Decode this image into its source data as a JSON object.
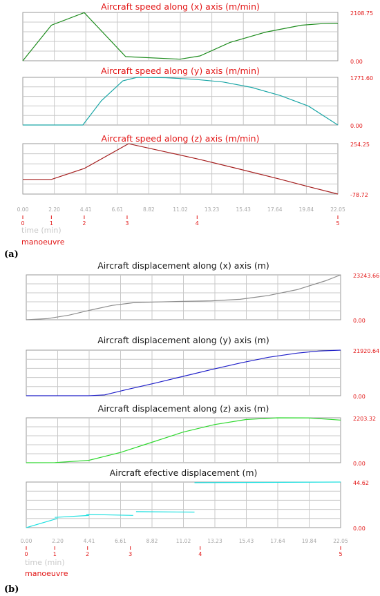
{
  "chart_data": [
    {
      "type": "line",
      "title": "Aircraft speed along (x) axis  (m/min)",
      "title_color": "#e21616",
      "color": "#1e8c1e",
      "max_label": "2108.75",
      "min_label": "0.00",
      "ylim": [
        0,
        2108.75
      ],
      "x": [
        0,
        2.0,
        4.3,
        7.2,
        11.0,
        12.4,
        14.5,
        17.0,
        19.5,
        21.0,
        22.05
      ],
      "y": [
        0,
        1550,
        2100,
        180,
        70,
        210,
        800,
        1250,
        1550,
        1620,
        1640
      ]
    },
    {
      "type": "line",
      "title": "Aircraft speed along (y) axis  (m/min)",
      "title_color": "#e21616",
      "color": "#1aa6a6",
      "max_label": "1771.60",
      "min_label": "0.00",
      "ylim": [
        0,
        1771.6
      ],
      "x": [
        0,
        4.2,
        5.5,
        7.0,
        8.0,
        10.0,
        12.0,
        14.0,
        16.0,
        18.0,
        20.0,
        22.05
      ],
      "y": [
        0,
        0,
        900,
        1640,
        1771,
        1760,
        1700,
        1600,
        1400,
        1100,
        700,
        0
      ]
    },
    {
      "type": "line",
      "title": "Aircraft speed along (z) axis  (m/min)",
      "title_color": "#e21616",
      "color": "#a51e1e",
      "max_label": "254.25",
      "min_label": "-78.72",
      "ylim": [
        -78.72,
        254.25
      ],
      "x": [
        0,
        2.0,
        4.3,
        7.4,
        10.0,
        12.4,
        15.0,
        18.0,
        20.0,
        22.05
      ],
      "y": [
        18,
        18,
        90,
        254,
        200,
        150,
        90,
        20,
        -30,
        -78.7
      ]
    },
    {
      "type": "line",
      "title": "Aircraft displacement along (x) axis (m)",
      "title_color": "#1a1a1a",
      "color": "#8c8c8c",
      "max_label": "23243.66",
      "min_label": "0.00",
      "ylim": [
        0,
        23243.66
      ],
      "x": [
        0,
        1.5,
        3.0,
        4.5,
        6.0,
        7.5,
        9.0,
        11.0,
        13.0,
        15.0,
        17.0,
        19.0,
        21.0,
        22.05
      ],
      "y": [
        0,
        600,
        2400,
        5000,
        7400,
        8800,
        9200,
        9500,
        9800,
        10600,
        12600,
        15600,
        20200,
        23243
      ]
    },
    {
      "type": "line",
      "title": "Aircraft displacement along (y) axis (m)",
      "title_color": "#1a1a1a",
      "color": "#1e1ec8",
      "max_label": "21920.64",
      "min_label": "0.00",
      "ylim": [
        0,
        21920.64
      ],
      "x": [
        0,
        4.4,
        5.5,
        7.0,
        9.0,
        11.0,
        13.0,
        15.0,
        17.0,
        19.0,
        20.5,
        22.05
      ],
      "y": [
        0,
        0,
        400,
        2900,
        6000,
        9300,
        12600,
        15700,
        18500,
        20500,
        21500,
        21920
      ]
    },
    {
      "type": "line",
      "title": "Aircraft displacement along (z) axis (m)",
      "title_color": "#1a1a1a",
      "color": "#2ed82e",
      "max_label": "2203.32",
      "min_label": "0.00",
      "ylim": [
        0,
        2203.32
      ],
      "x": [
        0,
        2.0,
        4.4,
        6.6,
        8.8,
        11.0,
        13.2,
        15.4,
        17.6,
        19.8,
        22.05
      ],
      "y": [
        0,
        5,
        120,
        500,
        1000,
        1500,
        1870,
        2120,
        2203,
        2200,
        2090
      ]
    },
    {
      "type": "line",
      "title": "Aircraft  efective displacement (m)",
      "title_color": "#1a1a1a",
      "color": "#1ee0e0",
      "max_label": "44.62",
      "min_label": "0.00",
      "ylim": [
        0,
        44.62
      ],
      "segments": [
        {
          "x": [
            0,
            2.2
          ],
          "y": [
            0,
            9
          ]
        },
        {
          "x": [
            2.0,
            4.4
          ],
          "y": [
            10,
            12
          ]
        },
        {
          "x": [
            4.2,
            7.5
          ],
          "y": [
            13,
            12
          ]
        },
        {
          "x": [
            7.7,
            11.8
          ],
          "y": [
            15.6,
            15.2
          ]
        },
        {
          "x": [
            11.8,
            22.05
          ],
          "y": [
            44,
            44.6
          ]
        }
      ]
    }
  ],
  "xticks": [
    "0.00",
    "2.20",
    "4.41",
    "6.61",
    "8.82",
    "11.02",
    "13.23",
    "15.43",
    "17.64",
    "19.84",
    "22.05"
  ],
  "xticks_b_extra": [
    "0.00",
    "2.20",
    "4.41",
    "6.61",
    "8.82",
    "11.02",
    "13.23",
    "15.43",
    "17.64",
    "19.84",
    "22.05"
  ],
  "time_label": "time  (min)",
  "manoeuvre_label": "manoeuvre",
  "manoeuvres": [
    {
      "label": "0",
      "t": 0
    },
    {
      "label": "1",
      "t": 2.0
    },
    {
      "label": "2",
      "t": 4.3
    },
    {
      "label": "3",
      "t": 7.3
    },
    {
      "label": "4",
      "t": 12.2
    },
    {
      "label": "5",
      "t": 22.05
    }
  ],
  "panel_a": "(a)",
  "panel_b": "(b)"
}
